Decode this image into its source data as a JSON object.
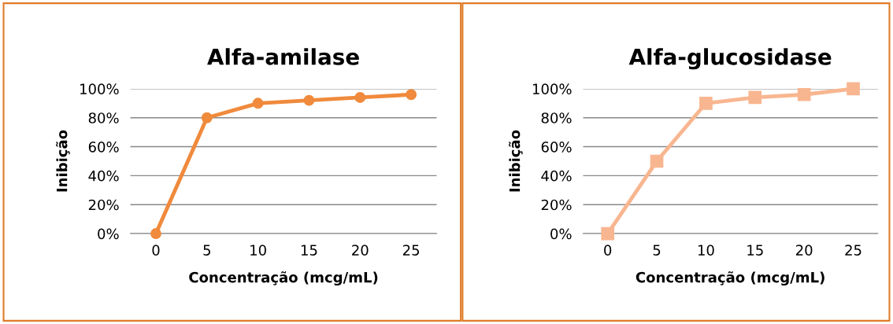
{
  "chart_data": [
    {
      "type": "line",
      "title": "Alfa-amilase",
      "xlabel": "Concentração (mcg/mL)",
      "ylabel": "Inibição",
      "categories": [
        "0",
        "5",
        "10",
        "15",
        "20",
        "25"
      ],
      "series": [
        {
          "color": "#f08a3c",
          "values": [
            0,
            80,
            90,
            92,
            94,
            96
          ],
          "marker": "circle"
        }
      ],
      "ylim": [
        0,
        100
      ],
      "yticks": [
        {
          "value": 0,
          "label": "0%"
        },
        {
          "value": 20,
          "label": "20%"
        },
        {
          "value": 40,
          "label": "40%"
        },
        {
          "value": 60,
          "label": "60%"
        },
        {
          "value": 80,
          "label": "80%"
        },
        {
          "value": 100,
          "label": "100%"
        }
      ],
      "grid": "y",
      "legend": false,
      "line_style": "solid"
    },
    {
      "type": "line",
      "title": "Alfa-glucosidase",
      "xlabel": "Concentração (mcg/mL)",
      "ylabel": "Inibição",
      "categories": [
        "0",
        "5",
        "10",
        "15",
        "20",
        "25"
      ],
      "series": [
        {
          "color": "#f8b690",
          "values": [
            0,
            50,
            90,
            94,
            96,
            100
          ],
          "marker": "square"
        }
      ],
      "ylim": [
        0,
        100
      ],
      "yticks": [
        {
          "value": 0,
          "label": "0%"
        },
        {
          "value": 20,
          "label": "20%"
        },
        {
          "value": 40,
          "label": "40%"
        },
        {
          "value": 60,
          "label": "60%"
        },
        {
          "value": 80,
          "label": "80%"
        },
        {
          "value": 100,
          "label": "100%"
        }
      ],
      "grid": "y",
      "legend": false,
      "line_style": "solid"
    }
  ]
}
